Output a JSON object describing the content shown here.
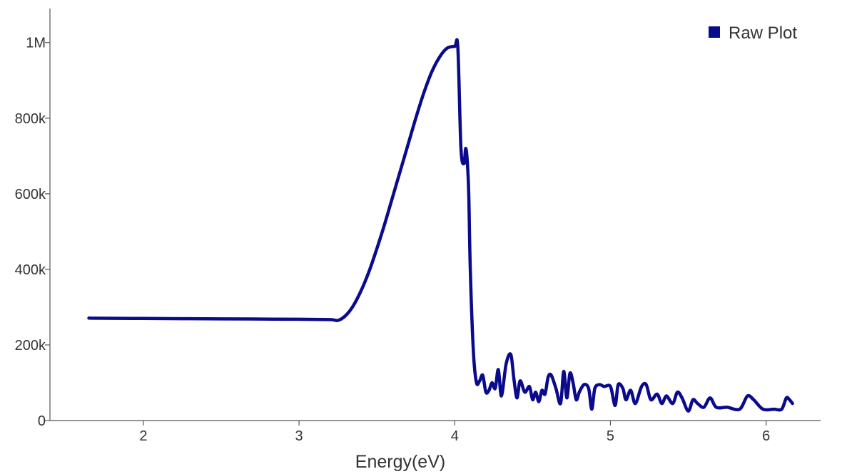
{
  "chart_data": {
    "type": "line",
    "title": "",
    "xlabel": "Energy(eV)",
    "ylabel": "",
    "xlim": [
      1.4,
      6.35
    ],
    "ylim": [
      0,
      1090000
    ],
    "x_ticks": [
      {
        "value": 2,
        "label": "2"
      },
      {
        "value": 3,
        "label": "3"
      },
      {
        "value": 4,
        "label": "4"
      },
      {
        "value": 5,
        "label": "5"
      },
      {
        "value": 6,
        "label": "6"
      }
    ],
    "y_ticks": [
      {
        "value": 0,
        "label": "0"
      },
      {
        "value": 200000,
        "label": "200k"
      },
      {
        "value": 400000,
        "label": "400k"
      },
      {
        "value": 600000,
        "label": "600k"
      },
      {
        "value": 800000,
        "label": "800k"
      },
      {
        "value": 1000000,
        "label": "1M"
      }
    ],
    "grid": false,
    "legend": "top-right",
    "series": [
      {
        "name": "Raw Plot",
        "color": "#0a0a8c",
        "x": [
          1.65,
          2.0,
          2.5,
          3.0,
          3.2,
          3.25,
          3.3,
          3.35,
          3.4,
          3.45,
          3.5,
          3.55,
          3.6,
          3.65,
          3.7,
          3.75,
          3.8,
          3.85,
          3.9,
          3.95,
          4.0,
          4.02,
          4.04,
          4.06,
          4.07,
          4.08,
          4.09,
          4.1,
          4.12,
          4.14,
          4.16,
          4.18,
          4.2,
          4.22,
          4.24,
          4.26,
          4.28,
          4.3,
          4.33,
          4.36,
          4.38,
          4.4,
          4.42,
          4.45,
          4.48,
          4.5,
          4.52,
          4.54,
          4.56,
          4.58,
          4.6,
          4.62,
          4.65,
          4.68,
          4.7,
          4.72,
          4.74,
          4.76,
          4.78,
          4.8,
          4.83,
          4.86,
          4.88,
          4.9,
          4.93,
          4.96,
          5.0,
          5.03,
          5.05,
          5.08,
          5.1,
          5.13,
          5.16,
          5.2,
          5.23,
          5.26,
          5.3,
          5.33,
          5.36,
          5.4,
          5.43,
          5.46,
          5.5,
          5.53,
          5.56,
          5.6,
          5.64,
          5.68,
          5.75,
          5.83,
          5.88,
          5.92,
          5.98,
          6.05,
          6.1,
          6.13,
          6.15,
          6.17
        ],
        "y": [
          271000,
          270000,
          269000,
          268000,
          267000,
          265000,
          278000,
          305000,
          345000,
          395000,
          455000,
          520000,
          590000,
          660000,
          730000,
          800000,
          865000,
          920000,
          960000,
          985000,
          990000,
          988000,
          720000,
          680000,
          720000,
          690000,
          600000,
          400000,
          180000,
          100000,
          105000,
          120000,
          75000,
          80000,
          100000,
          85000,
          135000,
          65000,
          150000,
          175000,
          110000,
          60000,
          105000,
          75000,
          90000,
          55000,
          75000,
          50000,
          80000,
          70000,
          115000,
          120000,
          85000,
          45000,
          130000,
          60000,
          125000,
          100000,
          55000,
          75000,
          95000,
          85000,
          30000,
          85000,
          95000,
          90000,
          90000,
          40000,
          95000,
          85000,
          55000,
          80000,
          45000,
          90000,
          95000,
          55000,
          70000,
          45000,
          65000,
          45000,
          75000,
          60000,
          25000,
          55000,
          45000,
          35000,
          60000,
          35000,
          35000,
          30000,
          65000,
          55000,
          30000,
          30000,
          30000,
          60000,
          55000,
          45000
        ]
      }
    ]
  }
}
